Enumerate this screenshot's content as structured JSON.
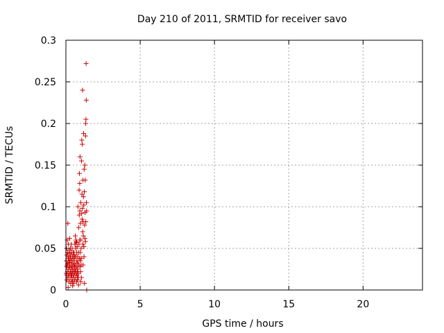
{
  "chart_data": {
    "type": "scatter",
    "title": "Day 210 of 2011, SRMTID for receiver savo",
    "xlabel": "GPS time / hours",
    "ylabel": "SRMTID / TECUs",
    "xlim": [
      0,
      24
    ],
    "ylim": [
      0,
      0.3
    ],
    "x_ticks": [
      0,
      5,
      10,
      15,
      20
    ],
    "y_ticks": [
      0,
      0.05,
      0.1,
      0.15,
      0.2,
      0.25,
      0.3
    ],
    "x_tick_labels": [
      "0",
      "5",
      "10",
      "15",
      "20"
    ],
    "y_tick_labels": [
      "0",
      "0.05",
      "0.1",
      "0.15",
      "0.2",
      "0.25",
      "0.3"
    ],
    "grid": true,
    "marker": "plus",
    "series_color": "#cc0000",
    "points": [
      [
        0.02,
        0.02
      ],
      [
        0.03,
        0.035
      ],
      [
        0.04,
        0.05
      ],
      [
        0.05,
        0.028
      ],
      [
        0.06,
        0.012
      ],
      [
        0.07,
        0.042
      ],
      [
        0.08,
        0.03
      ],
      [
        0.09,
        0.06
      ],
      [
        0.1,
        0.022
      ],
      [
        0.11,
        0.045
      ],
      [
        0.12,
        0.032
      ],
      [
        0.13,
        0.08
      ],
      [
        0.14,
        0.015
      ],
      [
        0.15,
        0.038
      ],
      [
        0.16,
        0.055
      ],
      [
        0.17,
        0.025
      ],
      [
        0.18,
        0.018
      ],
      [
        0.19,
        0.04
      ],
      [
        0.2,
        0.03
      ],
      [
        0.21,
        0.01
      ],
      [
        0.22,
        0.048
      ],
      [
        0.23,
        0.033
      ],
      [
        0.24,
        0.02
      ],
      [
        0.25,
        0.062
      ],
      [
        0.26,
        0.027
      ],
      [
        0.27,
        0.044
      ],
      [
        0.28,
        0.015
      ],
      [
        0.29,
        0.036
      ],
      [
        0.3,
        0.05
      ],
      [
        0.31,
        0.022
      ],
      [
        0.32,
        0.008
      ],
      [
        0.33,
        0.04
      ],
      [
        0.34,
        0.03
      ],
      [
        0.35,
        0.018
      ],
      [
        0.36,
        0.055
      ],
      [
        0.37,
        0.025
      ],
      [
        0.38,
        0.045
      ],
      [
        0.39,
        0.012
      ],
      [
        0.4,
        0.035
      ],
      [
        0.41,
        0.02
      ],
      [
        0.42,
        0.05
      ],
      [
        0.43,
        0.028
      ],
      [
        0.44,
        0.01
      ],
      [
        0.45,
        0.04
      ],
      [
        0.46,
        0.022
      ],
      [
        0.47,
        0.032
      ],
      [
        0.48,
        0.015
      ],
      [
        0.49,
        0.045
      ],
      [
        0.5,
        0.025
      ],
      [
        0.51,
        0.038
      ],
      [
        0.52,
        0.008
      ],
      [
        0.53,
        0.03
      ],
      [
        0.54,
        0.018
      ],
      [
        0.55,
        0.042
      ],
      [
        0.56,
        0.02
      ],
      [
        0.57,
        0.035
      ],
      [
        0.58,
        0.012
      ],
      [
        0.59,
        0.028
      ],
      [
        0.6,
        0.04
      ],
      [
        0.61,
        0.055
      ],
      [
        0.62,
        0.022
      ],
      [
        0.63,
        0.065
      ],
      [
        0.64,
        0.03
      ],
      [
        0.65,
        0.015
      ],
      [
        0.66,
        0.05
      ],
      [
        0.67,
        0.025
      ],
      [
        0.68,
        0.04
      ],
      [
        0.69,
        0.058
      ],
      [
        0.7,
        0.02
      ],
      [
        0.71,
        0.035
      ],
      [
        0.72,
        0.01
      ],
      [
        0.73,
        0.045
      ],
      [
        0.74,
        0.028
      ],
      [
        0.75,
        0.018
      ],
      [
        0.76,
        0.032
      ],
      [
        0.77,
        0.022
      ],
      [
        0.78,
        0.012
      ],
      [
        0.79,
        0.04
      ],
      [
        0.8,
        0.025
      ],
      [
        0.81,
        0.1
      ],
      [
        0.82,
        0.035
      ],
      [
        0.83,
        0.015
      ],
      [
        0.84,
        0.02
      ],
      [
        0.85,
        0.045
      ],
      [
        0.86,
        0.075
      ],
      [
        0.87,
        0.03
      ],
      [
        0.88,
        0.055
      ],
      [
        0.89,
        0.12
      ],
      [
        0.9,
        0.09
      ],
      [
        0.91,
        0.14
      ],
      [
        0.92,
        0.06
      ],
      [
        0.93,
        0.128
      ],
      [
        0.94,
        0.095
      ],
      [
        0.95,
        0.16
      ],
      [
        0.96,
        0.045
      ],
      [
        0.97,
        0.035
      ],
      [
        0.98,
        0.08
      ],
      [
        0.99,
        0.022
      ],
      [
        1.0,
        0.105
      ],
      [
        1.01,
        0.06
      ],
      [
        1.02,
        0.05
      ],
      [
        1.03,
        0.03
      ],
      [
        1.04,
        0.015
      ],
      [
        1.05,
        0.155
      ],
      [
        1.06,
        0.092
      ],
      [
        1.07,
        0.18
      ],
      [
        1.08,
        0.115
      ],
      [
        1.09,
        0.085
      ],
      [
        1.1,
        0.175
      ],
      [
        1.11,
        0.098
      ],
      [
        1.12,
        0.24
      ],
      [
        1.13,
        0.07
      ],
      [
        1.14,
        0.055
      ],
      [
        1.15,
        0.132
      ],
      [
        1.16,
        0.082
      ],
      [
        1.17,
        0.065
      ],
      [
        1.18,
        0.112
      ],
      [
        1.19,
        0.188
      ],
      [
        1.2,
        0.102
      ],
      [
        1.21,
        0.052
      ],
      [
        1.22,
        0.04
      ],
      [
        1.23,
        0.145
      ],
      [
        1.24,
        0.118
      ],
      [
        1.25,
        0.008
      ],
      [
        1.26,
        0.078
      ],
      [
        1.27,
        0.15
      ],
      [
        1.28,
        0.062
      ],
      [
        1.29,
        0.093
      ],
      [
        1.3,
        0.132
      ],
      [
        1.31,
        0.058
      ],
      [
        1.32,
        0.185
      ],
      [
        1.33,
        0.2
      ],
      [
        1.34,
        0.082
      ],
      [
        1.35,
        0.205
      ],
      [
        1.36,
        0.272
      ],
      [
        1.37,
        0.228
      ],
      [
        1.38,
        0.105
      ],
      [
        1.39,
        0.095
      ],
      [
        1.4,
        0.0
      ],
      [
        0.15,
        0.003
      ],
      [
        0.45,
        0.005
      ],
      [
        0.85,
        0.006
      ],
      [
        0.55,
        0.045
      ],
      [
        0.62,
        0.055
      ],
      [
        0.68,
        0.06
      ],
      [
        0.72,
        0.057
      ],
      [
        0.76,
        0.052
      ],
      [
        0.92,
        0.038
      ],
      [
        1.03,
        0.038
      ],
      [
        0.35,
        0.03
      ],
      [
        0.28,
        0.04
      ],
      [
        0.05,
        0.018
      ],
      [
        0.2,
        0.035
      ],
      [
        0.4,
        0.018
      ],
      [
        0.58,
        0.025
      ],
      [
        0.8,
        0.015
      ],
      [
        0.95,
        0.028
      ],
      [
        1.15,
        0.03
      ],
      [
        1.0,
        0.01
      ]
    ]
  }
}
